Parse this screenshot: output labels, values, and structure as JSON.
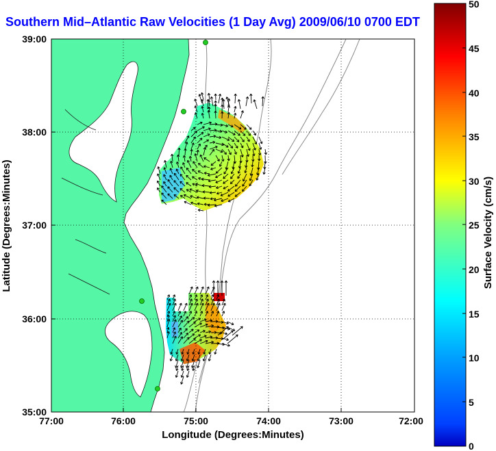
{
  "title": "Southern Mid–Atlantic Raw Velocities (1 Day Avg) 2009/06/10 0700 EDT",
  "xlabel": "Longitude (Degrees:Minutes)",
  "ylabel": "Latitude (Degrees:Minutes)",
  "colorbar_label": "Surface Velocity (cm/s)",
  "x_ticks": [
    "77:00",
    "76:00",
    "75:00",
    "74:00",
    "73:00",
    "72:00"
  ],
  "y_ticks": [
    "39:00",
    "38:00",
    "37:00",
    "36:00",
    "35:00"
  ],
  "colorbar_ticks": [
    "50",
    "45",
    "40",
    "35",
    "30",
    "25",
    "20",
    "15",
    "10",
    "5",
    "0"
  ],
  "colors": {
    "land": "#55f7a6",
    "title": "#0000ff",
    "bathymetry": "#888888"
  }
}
